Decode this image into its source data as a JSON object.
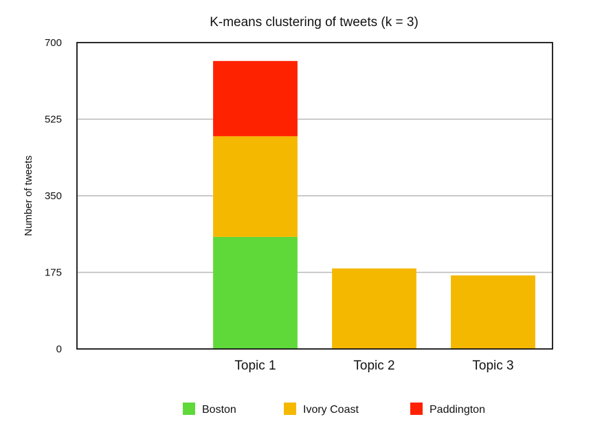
{
  "chart_data": {
    "type": "bar",
    "stacked": true,
    "title": "K-means clustering of tweets (k = 3)",
    "xlabel": "",
    "ylabel": "Number of tweets",
    "ylim": [
      0,
      700
    ],
    "yticks": [
      0,
      175,
      350,
      525,
      700
    ],
    "categories": [
      "",
      "Topic 1",
      "Topic 2",
      "Topic 3"
    ],
    "grid": true,
    "legend_position": "bottom",
    "series": [
      {
        "name": "Boston",
        "color": "#5fd93a",
        "values": [
          0,
          256,
          0,
          0
        ]
      },
      {
        "name": "Ivory Coast",
        "color": "#f5b800",
        "values": [
          0,
          230,
          184,
          168
        ]
      },
      {
        "name": "Paddington",
        "color": "#ff2200",
        "values": [
          0,
          172,
          0,
          0
        ]
      }
    ]
  }
}
